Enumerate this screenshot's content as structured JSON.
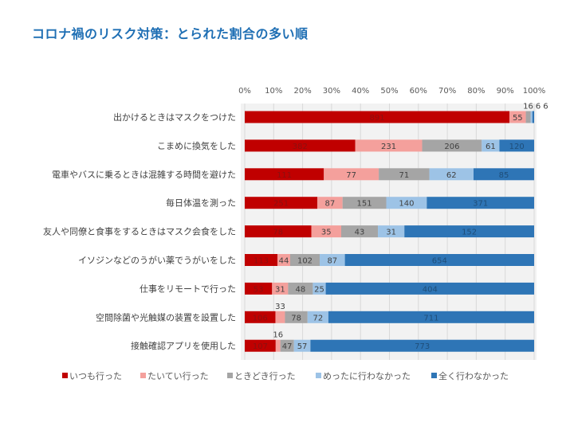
{
  "chart_data": {
    "type": "bar",
    "orientation": "horizontal",
    "stacked": "percent",
    "title": "コロナ禍のリスク対策：とられた割合の多い順",
    "xlim": [
      0,
      100
    ],
    "xticks": [
      "0%",
      "10%",
      "20%",
      "30%",
      "40%",
      "50%",
      "60%",
      "70%",
      "80%",
      "90%",
      "100%"
    ],
    "grid": true,
    "legend_position": "bottom",
    "categories": [
      "出かけるときはマスクをつけた",
      "こまめに換気をした",
      "電車やバスに乗るときは混雑する時間を避けた",
      "毎日体温を測った",
      "友人や同僚と食事をするときはマスク会食をした",
      "イソジンなどのうがい薬でうがいをした",
      "仕事をリモートで行った",
      "空間除菌や光触媒の装置を設置した",
      "接触確認アプリを使用した"
    ],
    "series": [
      {
        "name": "いつも行った",
        "color": "#c00000",
        "values": [
          891,
          382,
          111,
          251,
          78,
          113,
          53,
          106,
          107
        ]
      },
      {
        "name": "たいてい行った",
        "color": "#f4a09c",
        "values": [
          55,
          231,
          77,
          87,
          35,
          44,
          31,
          33,
          16
        ]
      },
      {
        "name": "ときどき行った",
        "color": "#a5a5a5",
        "values": [
          16,
          206,
          71,
          151,
          43,
          102,
          48,
          78,
          47
        ]
      },
      {
        "name": "めったに行わなかった",
        "color": "#9dc3e6",
        "values": [
          6,
          61,
          62,
          140,
          31,
          87,
          25,
          72,
          57
        ]
      },
      {
        "name": "全く行わなかった",
        "color": "#2e75b6",
        "values": [
          6,
          120,
          85,
          371,
          152,
          654,
          404,
          711,
          773
        ]
      }
    ]
  }
}
